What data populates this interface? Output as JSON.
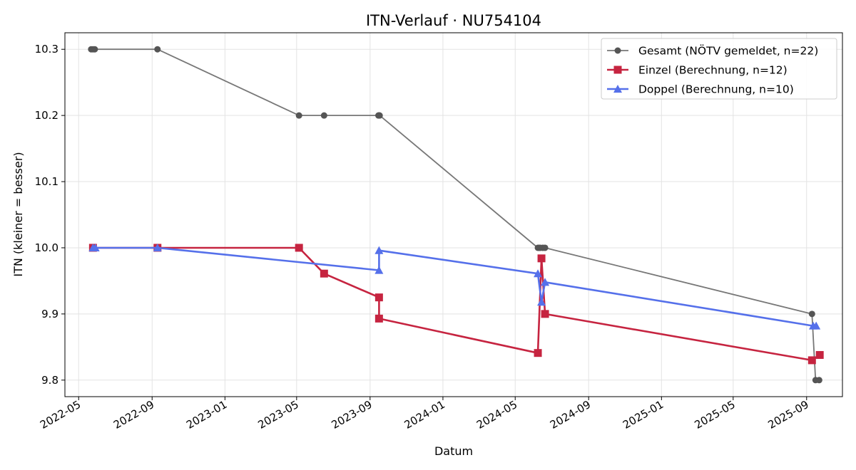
{
  "chart_data": {
    "type": "line",
    "title": "ITN-Verlauf · NU754104",
    "xlabel": "Datum",
    "ylabel": "ITN  (kleiner = besser)",
    "x_axis": "date",
    "xlim": [
      "2022-04-08",
      "2025-10-31"
    ],
    "ylim": [
      9.775,
      10.325
    ],
    "x_ticks": [
      "2022-05-01",
      "2022-09-01",
      "2023-01-01",
      "2023-05-01",
      "2023-09-01",
      "2024-01-01",
      "2024-05-01",
      "2024-09-01",
      "2025-01-01",
      "2025-05-01",
      "2025-09-01"
    ],
    "x_tick_labels": [
      "2022-05",
      "2022-09",
      "2023-01",
      "2023-05",
      "2023-09",
      "2024-01",
      "2024-05",
      "2024-09",
      "2025-01",
      "2025-05",
      "2025-09"
    ],
    "y_ticks": [
      9.8,
      9.9,
      10.0,
      10.1,
      10.2,
      10.3
    ],
    "y_tick_labels": [
      "9.8",
      "9.9",
      "10.0",
      "10.1",
      "10.2",
      "10.3"
    ],
    "grid": true,
    "legend_position": "top-right",
    "series": [
      {
        "name": "Gesamt (NÖTV gemeldet, n=22)",
        "color": "#777777",
        "marker_color": "#555555",
        "marker": "circle",
        "points": [
          [
            "2022-05-22",
            10.3
          ],
          [
            "2022-05-25",
            10.3
          ],
          [
            "2022-05-28",
            10.3
          ],
          [
            "2022-09-10",
            10.3
          ],
          [
            "2023-05-05",
            10.2
          ],
          [
            "2023-06-16",
            10.2
          ],
          [
            "2023-09-15",
            10.2
          ],
          [
            "2023-09-16",
            10.2
          ],
          [
            "2023-09-17",
            10.2
          ],
          [
            "2024-06-08",
            10.0
          ],
          [
            "2024-06-10",
            10.0
          ],
          [
            "2024-06-12",
            10.0
          ],
          [
            "2024-06-16",
            10.0
          ],
          [
            "2024-06-20",
            10.0
          ],
          [
            "2025-09-10",
            9.9
          ],
          [
            "2025-09-16",
            9.8
          ],
          [
            "2025-09-22",
            9.8
          ]
        ]
      },
      {
        "name": "Einzel (Berechnung, n=12)",
        "color": "#c62440",
        "marker_color": "#c62440",
        "marker": "square",
        "points": [
          [
            "2022-05-25",
            10.0
          ],
          [
            "2022-09-10",
            10.0
          ],
          [
            "2023-05-05",
            10.0
          ],
          [
            "2023-06-16",
            9.961
          ],
          [
            "2023-09-16",
            9.925
          ],
          [
            "2023-09-16",
            9.893
          ],
          [
            "2024-06-08",
            9.841
          ],
          [
            "2024-06-14",
            9.984
          ],
          [
            "2024-06-20",
            9.9
          ],
          [
            "2025-09-10",
            9.83
          ],
          [
            "2025-09-23",
            9.838
          ]
        ]
      },
      {
        "name": "Doppel (Berechnung, n=10)",
        "color": "#5570ea",
        "marker_color": "#5570ea",
        "marker": "triangle",
        "points": [
          [
            "2022-05-25",
            10.0
          ],
          [
            "2022-05-29",
            10.0
          ],
          [
            "2022-09-10",
            10.0
          ],
          [
            "2023-09-16",
            9.966
          ],
          [
            "2023-09-16",
            9.996
          ],
          [
            "2024-06-08",
            9.961
          ],
          [
            "2024-06-14",
            9.918
          ],
          [
            "2024-06-20",
            9.948
          ],
          [
            "2025-09-12",
            9.882
          ],
          [
            "2025-09-17",
            9.882
          ]
        ]
      }
    ]
  }
}
